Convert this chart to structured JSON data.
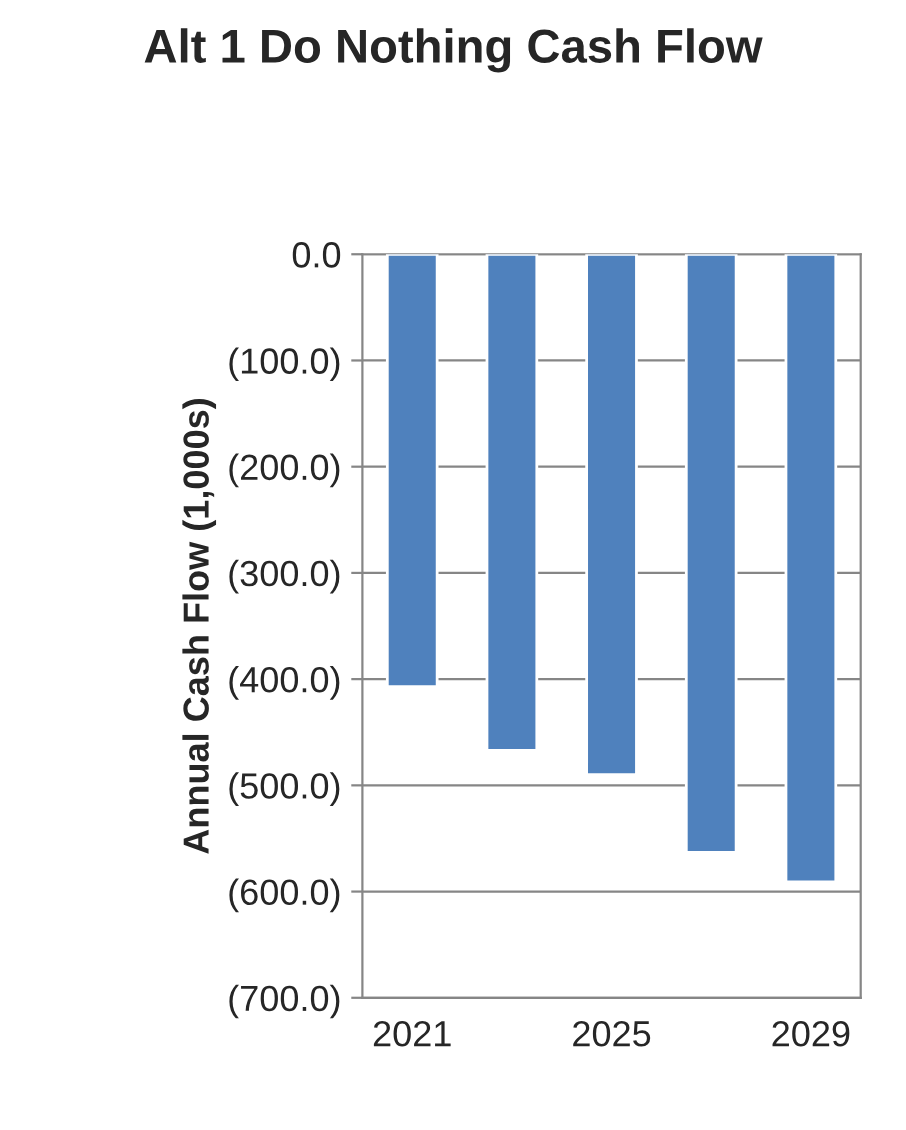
{
  "chart_data": {
    "type": "bar",
    "title": "Alt 1 Do Nothing Cash Flow",
    "ylabel": "Annual Cash Flow (1,000s)",
    "categories": [
      "2021",
      null,
      "2025",
      null,
      "2029"
    ],
    "values": [
      -407,
      -467,
      -490,
      -563,
      -591
    ],
    "color": "#4f81bd",
    "ylim": [
      -700,
      0
    ],
    "yticks": [
      {
        "value": 0,
        "label": "0.0"
      },
      {
        "value": -100,
        "label": "(100.0)"
      },
      {
        "value": -200,
        "label": "(200.0)"
      },
      {
        "value": -300,
        "label": "(300.0)"
      },
      {
        "value": -400,
        "label": "(400.0)"
      },
      {
        "value": -500,
        "label": "(500.0)"
      },
      {
        "value": -600,
        "label": "(600.0)"
      },
      {
        "value": -700,
        "label": "(700.0)"
      }
    ],
    "grid": "y",
    "legend": false
  }
}
